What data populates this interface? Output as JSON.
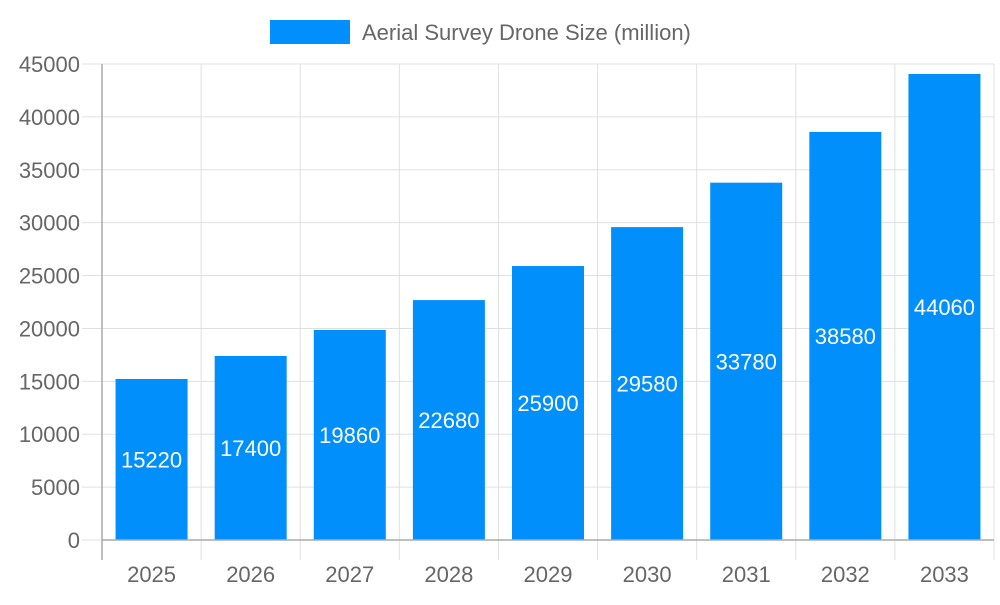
{
  "chart_data": {
    "type": "bar",
    "categories": [
      "2025",
      "2026",
      "2027",
      "2028",
      "2029",
      "2030",
      "2031",
      "2032",
      "2033"
    ],
    "series": [
      {
        "name": "Aerial Survey Drone Size (million)",
        "values": [
          15220,
          17400,
          19860,
          22680,
          25900,
          29580,
          33780,
          38580,
          44060
        ],
        "color": "#008ffb"
      }
    ],
    "ylim": [
      0,
      45000
    ],
    "yticks": [
      0,
      5000,
      10000,
      15000,
      20000,
      25000,
      30000,
      35000,
      40000,
      45000
    ],
    "grid": true,
    "legend": "top",
    "data_labels": true
  }
}
